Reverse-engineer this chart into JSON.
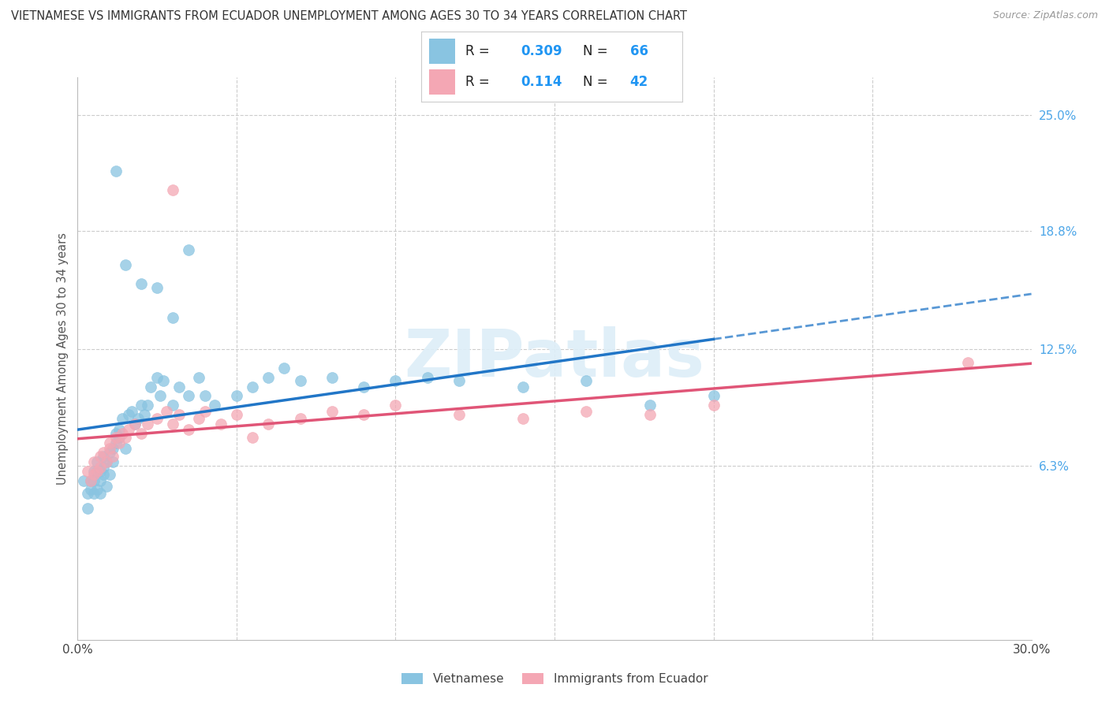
{
  "title": "VIETNAMESE VS IMMIGRANTS FROM ECUADOR UNEMPLOYMENT AMONG AGES 30 TO 34 YEARS CORRELATION CHART",
  "source": "Source: ZipAtlas.com",
  "ylabel": "Unemployment Among Ages 30 to 34 years",
  "xlim": [
    0.0,
    0.3
  ],
  "ylim": [
    -0.03,
    0.27
  ],
  "y_ticks_right": [
    0.063,
    0.125,
    0.188,
    0.25
  ],
  "y_tick_labels_right": [
    "6.3%",
    "12.5%",
    "18.8%",
    "25.0%"
  ],
  "x_ticks": [
    0.0,
    0.05,
    0.1,
    0.15,
    0.2,
    0.25,
    0.3
  ],
  "x_tick_labels": [
    "0.0%",
    "",
    "",
    "",
    "",
    "",
    "30.0%"
  ],
  "color_vietnamese": "#89c4e1",
  "color_ecuador": "#f4a7b4",
  "trend_color_vietnamese": "#2176c7",
  "trend_color_ecuador": "#e05577",
  "background_color": "#ffffff",
  "grid_color": "#cccccc",
  "vietnamese_x": [
    0.002,
    0.003,
    0.003,
    0.004,
    0.004,
    0.005,
    0.005,
    0.005,
    0.006,
    0.006,
    0.006,
    0.007,
    0.007,
    0.007,
    0.008,
    0.008,
    0.008,
    0.009,
    0.009,
    0.01,
    0.01,
    0.011,
    0.011,
    0.012,
    0.012,
    0.013,
    0.013,
    0.014,
    0.015,
    0.016,
    0.017,
    0.018,
    0.019,
    0.02,
    0.021,
    0.022,
    0.023,
    0.025,
    0.026,
    0.027,
    0.03,
    0.032,
    0.035,
    0.038,
    0.04,
    0.043,
    0.05,
    0.055,
    0.06,
    0.065,
    0.07,
    0.08,
    0.09,
    0.1,
    0.11,
    0.12,
    0.14,
    0.16,
    0.18,
    0.2,
    0.012,
    0.015,
    0.02,
    0.025,
    0.03,
    0.035
  ],
  "vietnamese_y": [
    0.055,
    0.04,
    0.048,
    0.05,
    0.055,
    0.06,
    0.055,
    0.048,
    0.06,
    0.065,
    0.05,
    0.06,
    0.055,
    0.048,
    0.068,
    0.062,
    0.058,
    0.065,
    0.052,
    0.07,
    0.058,
    0.072,
    0.065,
    0.075,
    0.08,
    0.078,
    0.082,
    0.088,
    0.072,
    0.09,
    0.092,
    0.085,
    0.088,
    0.095,
    0.09,
    0.095,
    0.105,
    0.11,
    0.1,
    0.108,
    0.095,
    0.105,
    0.1,
    0.11,
    0.1,
    0.095,
    0.1,
    0.105,
    0.11,
    0.115,
    0.108,
    0.11,
    0.105,
    0.108,
    0.11,
    0.108,
    0.105,
    0.108,
    0.095,
    0.1,
    0.22,
    0.17,
    0.16,
    0.158,
    0.142,
    0.178
  ],
  "ecuador_x": [
    0.003,
    0.004,
    0.005,
    0.005,
    0.006,
    0.007,
    0.007,
    0.008,
    0.009,
    0.01,
    0.01,
    0.011,
    0.012,
    0.013,
    0.014,
    0.015,
    0.016,
    0.018,
    0.02,
    0.022,
    0.025,
    0.028,
    0.03,
    0.032,
    0.035,
    0.038,
    0.04,
    0.045,
    0.05,
    0.055,
    0.06,
    0.07,
    0.08,
    0.09,
    0.1,
    0.12,
    0.14,
    0.16,
    0.18,
    0.2,
    0.03,
    0.28
  ],
  "ecuador_y": [
    0.06,
    0.055,
    0.058,
    0.065,
    0.06,
    0.068,
    0.062,
    0.07,
    0.065,
    0.072,
    0.075,
    0.068,
    0.078,
    0.075,
    0.08,
    0.078,
    0.082,
    0.085,
    0.08,
    0.085,
    0.088,
    0.092,
    0.085,
    0.09,
    0.082,
    0.088,
    0.092,
    0.085,
    0.09,
    0.078,
    0.085,
    0.088,
    0.092,
    0.09,
    0.095,
    0.09,
    0.088,
    0.092,
    0.09,
    0.095,
    0.21,
    0.118
  ]
}
